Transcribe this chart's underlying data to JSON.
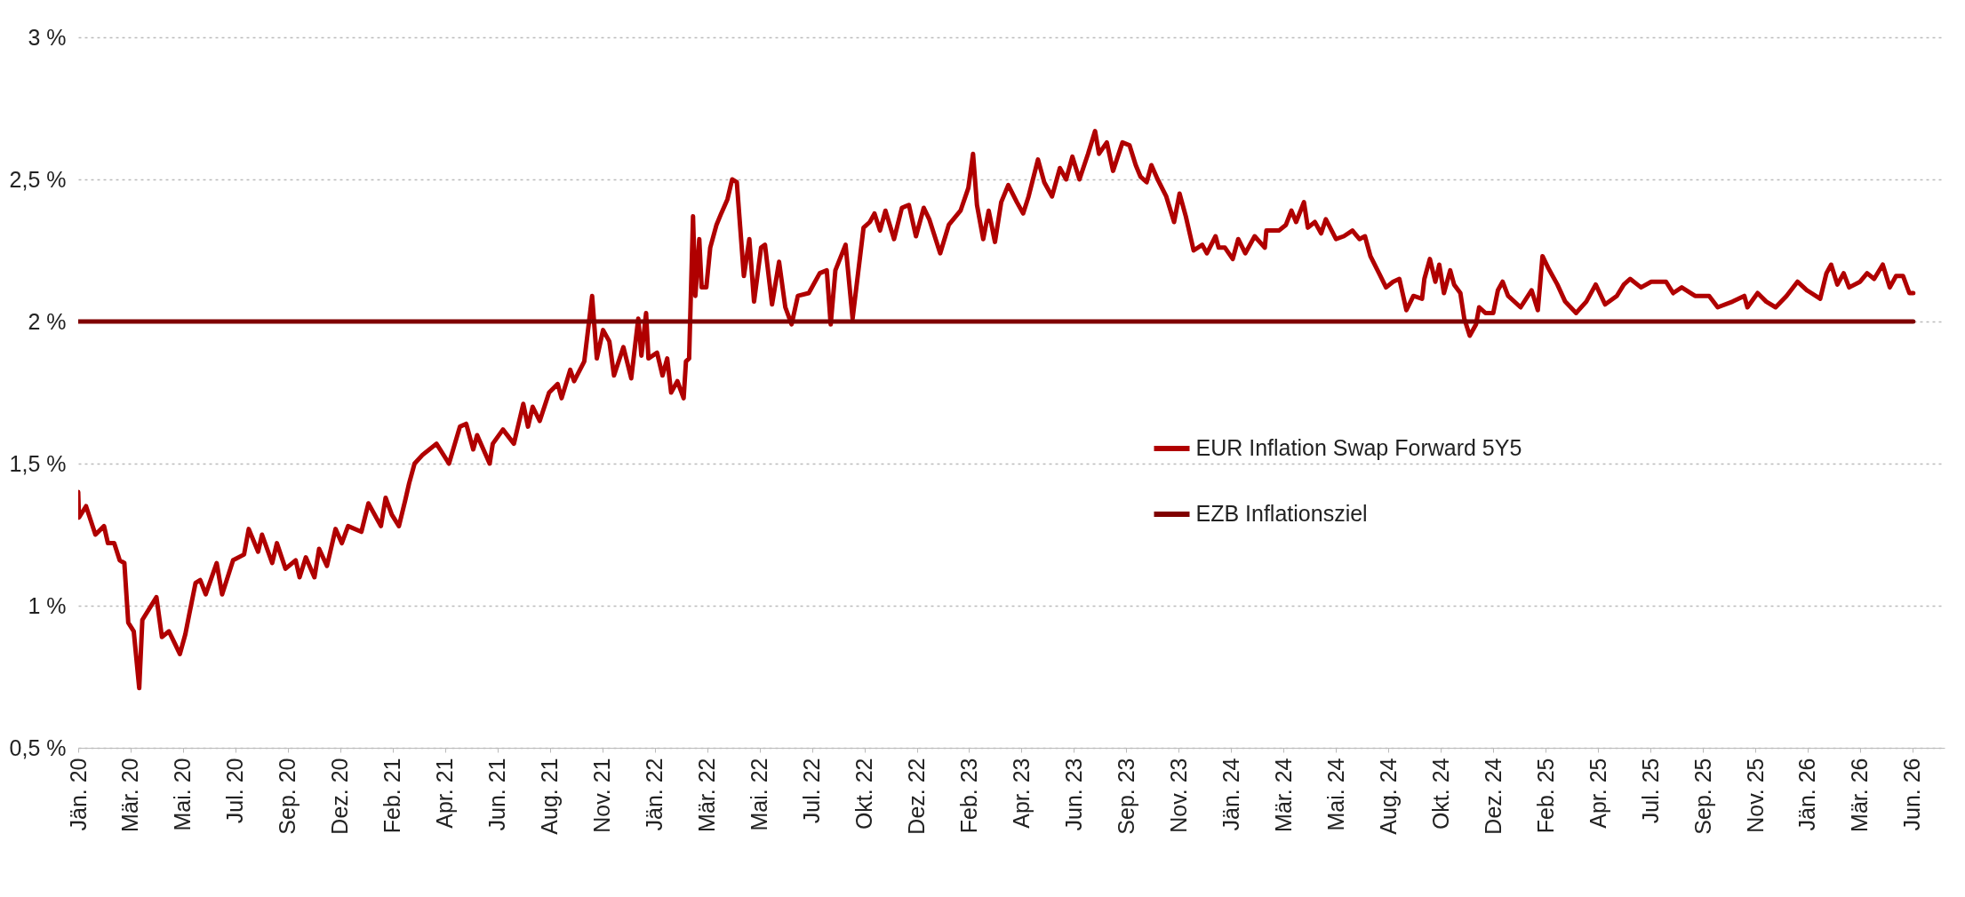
{
  "chart_data": {
    "type": "line",
    "xlim": [
      "2020-01-01",
      "2026-07-14"
    ],
    "xticks": [
      {
        "value": "2020-01-01",
        "label": "Jän. 20"
      },
      {
        "value": "2020-03-08",
        "label": "Mär. 20"
      },
      {
        "value": "2020-05-14",
        "label": "Mai. 20"
      },
      {
        "value": "2020-07-20",
        "label": "Jul. 20"
      },
      {
        "value": "2020-09-25",
        "label": "Sep. 20"
      },
      {
        "value": "2020-12-01",
        "label": "Dez. 20"
      },
      {
        "value": "2021-02-06",
        "label": "Feb. 21"
      },
      {
        "value": "2021-04-14",
        "label": "Apr. 21"
      },
      {
        "value": "2021-06-20",
        "label": "Jun. 21"
      },
      {
        "value": "2021-08-26",
        "label": "Aug. 21"
      },
      {
        "value": "2021-11-01",
        "label": "Nov. 21"
      },
      {
        "value": "2022-01-07",
        "label": "Jän. 22"
      },
      {
        "value": "2022-03-15",
        "label": "Mär. 22"
      },
      {
        "value": "2022-05-21",
        "label": "Mai. 22"
      },
      {
        "value": "2022-07-27",
        "label": "Jul. 22"
      },
      {
        "value": "2022-10-02",
        "label": "Okt. 22"
      },
      {
        "value": "2022-12-08",
        "label": "Dez. 22"
      },
      {
        "value": "2023-02-13",
        "label": "Feb. 23"
      },
      {
        "value": "2023-04-21",
        "label": "Apr. 23"
      },
      {
        "value": "2023-06-27",
        "label": "Jun. 23"
      },
      {
        "value": "2023-09-02",
        "label": "Sep. 23"
      },
      {
        "value": "2023-11-08",
        "label": "Nov. 23"
      },
      {
        "value": "2024-01-14",
        "label": "Jän. 24"
      },
      {
        "value": "2024-03-21",
        "label": "Mär. 24"
      },
      {
        "value": "2024-05-27",
        "label": "Mai. 24"
      },
      {
        "value": "2024-08-02",
        "label": "Aug. 24"
      },
      {
        "value": "2024-10-08",
        "label": "Okt. 24"
      },
      {
        "value": "2024-12-14",
        "label": "Dez. 24"
      },
      {
        "value": "2025-02-19",
        "label": "Feb. 25"
      },
      {
        "value": "2025-04-27",
        "label": "Apr. 25"
      },
      {
        "value": "2025-07-03",
        "label": "Jul. 25"
      },
      {
        "value": "2025-09-08",
        "label": "Sep. 25"
      },
      {
        "value": "2025-11-14",
        "label": "Nov. 25"
      },
      {
        "value": "2026-01-20",
        "label": "Jän. 26"
      },
      {
        "value": "2026-03-28",
        "label": "Mär. 26"
      },
      {
        "value": "2026-06-03",
        "label": "Jun. 26"
      }
    ],
    "ylim": [
      0.5,
      3
    ],
    "yticks": [
      {
        "value": 0.5,
        "label": "0,5 %"
      },
      {
        "value": 1,
        "label": "1 %"
      },
      {
        "value": 1.5,
        "label": "1,5 %"
      },
      {
        "value": 2,
        "label": "2 %"
      },
      {
        "value": 2.5,
        "label": "2,5 %"
      },
      {
        "value": 3,
        "label": "3 %"
      }
    ],
    "grid": "y",
    "legend": "right",
    "series": [
      {
        "name": "EUR Inflation Swap Forward 5Y5",
        "color": "#b00000",
        "x": [
          "2020-01-01",
          "2020-01-02",
          "2020-01-11",
          "2020-01-23",
          "2020-02-03",
          "2020-02-08",
          "2020-02-16",
          "2020-02-23",
          "2020-02-29",
          "2020-03-05",
          "2020-03-12",
          "2020-03-19",
          "2020-03-23",
          "2020-04-10",
          "2020-04-17",
          "2020-04-26",
          "2020-05-10",
          "2020-05-17",
          "2020-05-22",
          "2020-05-30",
          "2020-06-05",
          "2020-06-12",
          "2020-06-26",
          "2020-07-03",
          "2020-07-17",
          "2020-07-31",
          "2020-08-06",
          "2020-08-18",
          "2020-08-23",
          "2020-09-05",
          "2020-09-11",
          "2020-09-22",
          "2020-10-05",
          "2020-10-10",
          "2020-10-18",
          "2020-10-29",
          "2020-11-04",
          "2020-11-14",
          "2020-11-25",
          "2020-12-03",
          "2020-12-11",
          "2020-12-28",
          "2021-01-06",
          "2021-01-22",
          "2021-01-28",
          "2021-02-05",
          "2021-02-14",
          "2021-02-22",
          "2021-02-27",
          "2021-03-06",
          "2021-03-16",
          "2021-04-03",
          "2021-04-19",
          "2021-05-03",
          "2021-05-11",
          "2021-05-20",
          "2021-05-25",
          "2021-06-10",
          "2021-06-14",
          "2021-06-27",
          "2021-07-11",
          "2021-07-23",
          "2021-07-29",
          "2021-08-04",
          "2021-08-13",
          "2021-08-25",
          "2021-09-05",
          "2021-09-10",
          "2021-09-21",
          "2021-09-26",
          "2021-10-09",
          "2021-10-19",
          "2021-10-25",
          "2021-11-02",
          "2021-11-10",
          "2021-11-16",
          "2021-11-28",
          "2021-12-08",
          "2021-12-17",
          "2021-12-21",
          "2021-12-27",
          "2021-12-30",
          "2022-01-10",
          "2022-01-17",
          "2022-01-23",
          "2022-01-28",
          "2022-02-05",
          "2022-02-13",
          "2022-02-16",
          "2022-02-20",
          "2022-02-25",
          "2022-02-28",
          "2022-03-05",
          "2022-03-08",
          "2022-03-14",
          "2022-03-19",
          "2022-03-27",
          "2022-04-02",
          "2022-04-10",
          "2022-04-16",
          "2022-04-22",
          "2022-05-01",
          "2022-05-08",
          "2022-05-14",
          "2022-05-23",
          "2022-05-28",
          "2022-06-06",
          "2022-06-15",
          "2022-06-23",
          "2022-07-01",
          "2022-07-09",
          "2022-07-23",
          "2022-08-06",
          "2022-08-15",
          "2022-08-20",
          "2022-08-26",
          "2022-09-08",
          "2022-09-17",
          "2022-10-01",
          "2022-10-09",
          "2022-10-15",
          "2022-10-22",
          "2022-10-29",
          "2022-11-09",
          "2022-11-19",
          "2022-11-28",
          "2022-12-07",
          "2022-12-17",
          "2022-12-24",
          "2023-01-07",
          "2023-01-18",
          "2023-02-02",
          "2023-02-12",
          "2023-02-18",
          "2023-02-23",
          "2023-03-03",
          "2023-03-10",
          "2023-03-18",
          "2023-03-26",
          "2023-04-04",
          "2023-04-15",
          "2023-04-23",
          "2023-04-30",
          "2023-05-12",
          "2023-05-20",
          "2023-05-30",
          "2023-06-09",
          "2023-06-17",
          "2023-06-25",
          "2023-07-04",
          "2023-07-15",
          "2023-07-24",
          "2023-07-29",
          "2023-08-08",
          "2023-08-16",
          "2023-08-28",
          "2023-09-06",
          "2023-09-14",
          "2023-09-20",
          "2023-09-28",
          "2023-10-04",
          "2023-10-12",
          "2023-10-23",
          "2023-11-02",
          "2023-11-09",
          "2023-11-17",
          "2023-11-27",
          "2023-12-08",
          "2023-12-14",
          "2023-12-25",
          "2023-12-29",
          "2024-01-06",
          "2024-01-16",
          "2024-01-23",
          "2024-02-01",
          "2024-02-13",
          "2024-02-26",
          "2024-02-28",
          "2024-03-15",
          "2024-03-24",
          "2024-03-31",
          "2024-04-06",
          "2024-04-16",
          "2024-04-21",
          "2024-04-30",
          "2024-05-08",
          "2024-05-14",
          "2024-05-27",
          "2024-06-06",
          "2024-06-17",
          "2024-06-26",
          "2024-07-03",
          "2024-07-10",
          "2024-07-21",
          "2024-07-30",
          "2024-08-08",
          "2024-08-16",
          "2024-08-25",
          "2024-09-03",
          "2024-09-14",
          "2024-09-17",
          "2024-09-24",
          "2024-10-01",
          "2024-10-06",
          "2024-10-12",
          "2024-10-20",
          "2024-10-25",
          "2024-11-02",
          "2024-11-07",
          "2024-11-14",
          "2024-11-22",
          "2024-11-26",
          "2024-12-04",
          "2024-12-14",
          "2024-12-20",
          "2024-12-26",
          "2025-01-02",
          "2025-01-18",
          "2025-02-01",
          "2025-02-09",
          "2025-02-15",
          "2025-02-22",
          "2025-03-06",
          "2025-03-16",
          "2025-03-30",
          "2025-04-12",
          "2025-04-24",
          "2025-05-06",
          "2025-05-21",
          "2025-05-30",
          "2025-06-07",
          "2025-06-21",
          "2025-07-04",
          "2025-07-23",
          "2025-08-01",
          "2025-08-12",
          "2025-08-29",
          "2025-09-16",
          "2025-09-27",
          "2025-10-16",
          "2025-10-31",
          "2025-11-04",
          "2025-11-17",
          "2025-11-28",
          "2025-12-10",
          "2025-12-24",
          "2026-01-07",
          "2026-01-19",
          "2026-02-05",
          "2026-02-13",
          "2026-02-19",
          "2026-02-27",
          "2026-03-07",
          "2026-03-14",
          "2026-03-28",
          "2026-04-06",
          "2026-04-15",
          "2026-04-26",
          "2026-05-05",
          "2026-05-13",
          "2026-05-22",
          "2026-05-30",
          "2026-06-04"
        ],
        "values": [
          1.4,
          1.31,
          1.35,
          1.25,
          1.28,
          1.22,
          1.22,
          1.16,
          1.15,
          0.94,
          0.91,
          0.71,
          0.95,
          1.03,
          0.89,
          0.91,
          0.83,
          0.9,
          0.97,
          1.08,
          1.09,
          1.04,
          1.15,
          1.04,
          1.16,
          1.18,
          1.27,
          1.19,
          1.25,
          1.15,
          1.22,
          1.13,
          1.16,
          1.1,
          1.17,
          1.1,
          1.2,
          1.14,
          1.27,
          1.22,
          1.28,
          1.26,
          1.36,
          1.28,
          1.38,
          1.32,
          1.28,
          1.37,
          1.43,
          1.5,
          1.53,
          1.57,
          1.5,
          1.63,
          1.64,
          1.55,
          1.6,
          1.5,
          1.57,
          1.62,
          1.57,
          1.71,
          1.63,
          1.7,
          1.65,
          1.75,
          1.78,
          1.73,
          1.83,
          1.79,
          1.86,
          2.09,
          1.87,
          1.97,
          1.93,
          1.81,
          1.91,
          1.8,
          2.01,
          1.88,
          2.03,
          1.87,
          1.89,
          1.81,
          1.87,
          1.75,
          1.79,
          1.73,
          1.86,
          1.87,
          2.37,
          2.09,
          2.29,
          2.12,
          2.12,
          2.26,
          2.34,
          2.38,
          2.43,
          2.5,
          2.49,
          2.16,
          2.29,
          2.07,
          2.26,
          2.27,
          2.06,
          2.21,
          2.05,
          1.99,
          2.09,
          2.1,
          2.17,
          2.18,
          1.99,
          2.18,
          2.27,
          2.01,
          2.33,
          2.35,
          2.38,
          2.32,
          2.39,
          2.29,
          2.4,
          2.41,
          2.3,
          2.4,
          2.36,
          2.24,
          2.34,
          2.39,
          2.47,
          2.59,
          2.41,
          2.29,
          2.39,
          2.28,
          2.42,
          2.48,
          2.42,
          2.38,
          2.44,
          2.57,
          2.49,
          2.44,
          2.54,
          2.5,
          2.58,
          2.5,
          2.59,
          2.67,
          2.59,
          2.63,
          2.53,
          2.63,
          2.62,
          2.55,
          2.51,
          2.49,
          2.55,
          2.5,
          2.44,
          2.35,
          2.45,
          2.37,
          2.25,
          2.27,
          2.24,
          2.3,
          2.26,
          2.26,
          2.22,
          2.29,
          2.24,
          2.3,
          2.26,
          2.32,
          2.32,
          2.34,
          2.39,
          2.35,
          2.42,
          2.33,
          2.35,
          2.31,
          2.36,
          2.29,
          2.3,
          2.32,
          2.29,
          2.3,
          2.23,
          2.17,
          2.12,
          2.14,
          2.15,
          2.04,
          2.09,
          2.08,
          2.15,
          2.22,
          2.14,
          2.2,
          2.1,
          2.18,
          2.13,
          2.1,
          2.01,
          1.95,
          1.99,
          2.05,
          2.03,
          2.03,
          2.11,
          2.14,
          2.09,
          2.05,
          2.11,
          2.04,
          2.23,
          2.19,
          2.13,
          2.07,
          2.03,
          2.07,
          2.13,
          2.06,
          2.09,
          2.13,
          2.15,
          2.12,
          2.14,
          2.14,
          2.1,
          2.12,
          2.09,
          2.09,
          2.05,
          2.07,
          2.09,
          2.05,
          2.1,
          2.07,
          2.05,
          2.09,
          2.14,
          2.11,
          2.08,
          2.17,
          2.2,
          2.13,
          2.17,
          2.12,
          2.14,
          2.17,
          2.15,
          2.2,
          2.12,
          2.16,
          2.16,
          2.1,
          2.1
        ]
      },
      {
        "name": "EZB Inflationsziel",
        "color": "#800000",
        "x": [
          "2020-01-01",
          "2026-06-04"
        ],
        "values": [
          2,
          2
        ]
      }
    ]
  }
}
